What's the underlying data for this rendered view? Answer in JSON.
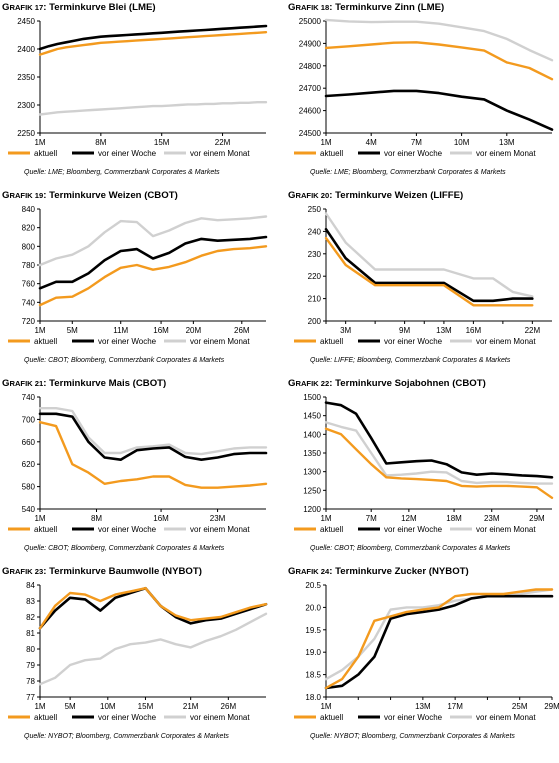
{
  "legend_labels": [
    "aktuell",
    "vor einer Woche",
    "vor einem Monat"
  ],
  "colors": {
    "aktuell": "#f39a1e",
    "woche": "#000000",
    "monat": "#d0d0d0"
  },
  "chart_data": [
    {
      "type": "line",
      "title_prefix": "Grafik 17:",
      "title": "Terminkurve Blei (LME)",
      "source": "Quelle: LME; Bloomberg, Commerzbank Corporates & Markets",
      "x": [
        1,
        2,
        3,
        4,
        5,
        6,
        7,
        8,
        9,
        10,
        11,
        12,
        13,
        14,
        15,
        16,
        17,
        18,
        19,
        20,
        21,
        22,
        23,
        24,
        25,
        26,
        27
      ],
      "x_ticks": [
        1,
        8,
        15,
        22
      ],
      "x_tick_labels": [
        "1M",
        "8M",
        "15M",
        "22M"
      ],
      "xlim": [
        1,
        27
      ],
      "ylim": [
        2250,
        2450
      ],
      "y_ticks": [
        2250,
        2300,
        2350,
        2400,
        2450
      ],
      "series": [
        {
          "name": "aktuell",
          "values": [
            2390,
            2395,
            2400,
            2403,
            2405,
            2407,
            2409,
            2411,
            2412,
            2413,
            2414,
            2415,
            2416,
            2417,
            2418,
            2419,
            2420,
            2421,
            2422,
            2423,
            2424,
            2425,
            2426,
            2427,
            2428,
            2429,
            2430
          ]
        },
        {
          "name": "vor einer Woche",
          "values": [
            2400,
            2405,
            2409,
            2412,
            2415,
            2418,
            2420,
            2422,
            2423,
            2424,
            2425,
            2426,
            2427,
            2428,
            2429,
            2430,
            2431,
            2432,
            2433,
            2434,
            2435,
            2436,
            2437,
            2438,
            2439,
            2440,
            2441
          ]
        },
        {
          "name": "vor einem Monat",
          "values": [
            2283,
            2285,
            2287,
            2288,
            2289,
            2290,
            2291,
            2292,
            2293,
            2294,
            2295,
            2296,
            2297,
            2298,
            2298,
            2299,
            2300,
            2301,
            2301,
            2302,
            2302,
            2303,
            2303,
            2304,
            2304,
            2305,
            2305
          ]
        }
      ]
    },
    {
      "type": "line",
      "title_prefix": "Grafik 18:",
      "title": "Terminkurve Zinn (LME)",
      "source": "Quelle: LME; Bloomberg, Commerzbank Corporates & Markets",
      "x": [
        1,
        2.5,
        4,
        5.5,
        7,
        8.5,
        10,
        11.5,
        13,
        14.5,
        16
      ],
      "x_ticks": [
        1,
        4,
        7,
        10,
        13
      ],
      "x_tick_labels": [
        "1M",
        "4M",
        "7M",
        "10M",
        "13M"
      ],
      "xlim": [
        1,
        16
      ],
      "ylim": [
        24500,
        25000
      ],
      "y_ticks": [
        24500,
        24600,
        24700,
        24800,
        24900,
        25000
      ],
      "series": [
        {
          "name": "aktuell",
          "values": [
            24880,
            24887,
            24895,
            24903,
            24905,
            24895,
            24882,
            24868,
            24815,
            24790,
            24740
          ]
        },
        {
          "name": "vor einer Woche",
          "values": [
            24665,
            24672,
            24680,
            24688,
            24688,
            24678,
            24662,
            24650,
            24600,
            24560,
            24515
          ]
        },
        {
          "name": "vor einem Monat",
          "values": [
            25005,
            24998,
            24995,
            24997,
            24997,
            24988,
            24972,
            24955,
            24920,
            24870,
            24825
          ]
        }
      ]
    },
    {
      "type": "line",
      "title_prefix": "Grafik 19:",
      "title": "Terminkurve Weizen (CBOT)",
      "source": "Quelle: CBOT; Bloomberg, Commerzbank Corporates & Markets",
      "x": [
        1,
        3,
        5,
        7,
        9,
        11,
        13,
        15,
        17,
        19,
        21,
        23,
        25,
        27,
        29
      ],
      "x_ticks": [
        1,
        5,
        11,
        16,
        20,
        26
      ],
      "x_tick_labels": [
        "1M",
        "5M",
        "11M",
        "16M",
        "20M",
        "26M"
      ],
      "xlim": [
        1,
        29
      ],
      "ylim": [
        720,
        840
      ],
      "y_ticks": [
        720,
        740,
        760,
        780,
        800,
        820,
        840
      ],
      "series": [
        {
          "name": "aktuell",
          "values": [
            737,
            745,
            746,
            755,
            767,
            777,
            780,
            775,
            778,
            783,
            790,
            795,
            797,
            798,
            800
          ]
        },
        {
          "name": "vor einer Woche",
          "values": [
            755,
            762,
            762,
            771,
            785,
            795,
            797,
            787,
            793,
            803,
            808,
            806,
            807,
            808,
            810
          ]
        },
        {
          "name": "vor einem Monat",
          "values": [
            780,
            787,
            791,
            800,
            815,
            827,
            826,
            811,
            817,
            825,
            830,
            828,
            829,
            830,
            832
          ]
        }
      ]
    },
    {
      "type": "line",
      "title_prefix": "Grafik 20:",
      "title": "Terminkurve Weizen (LIFFE)",
      "source": "Quelle: LIFFE; Bloomberg, Commerzbank Corporates & Markets",
      "x": [
        1,
        3,
        6,
        9,
        11,
        13,
        16,
        18,
        20,
        22
      ],
      "x_ticks": [
        1,
        3,
        6,
        9,
        11,
        13,
        16,
        19,
        22
      ],
      "x_tick_labels": [
        "",
        "3M",
        "",
        "9M",
        "",
        "13M",
        "16M",
        "",
        "22M"
      ],
      "xlim": [
        1,
        24
      ],
      "ylim": [
        200,
        250
      ],
      "y_ticks": [
        200,
        210,
        220,
        230,
        240,
        250
      ],
      "series": [
        {
          "name": "aktuell",
          "values": [
            237,
            225,
            216,
            216,
            216,
            216,
            207,
            207,
            207,
            207
          ]
        },
        {
          "name": "vor einer Woche",
          "values": [
            241,
            228,
            217,
            217,
            217,
            217,
            209,
            209,
            210,
            210
          ]
        },
        {
          "name": "vor einem Monat",
          "values": [
            248,
            235,
            223,
            223,
            223,
            223,
            219,
            219,
            213,
            211
          ]
        }
      ]
    },
    {
      "type": "line",
      "title_prefix": "Grafik 21:",
      "title": "Terminkurve Mais (CBOT)",
      "source": "Quelle: CBOT; Bloomberg, Commerzbank Corporates & Markets",
      "x": [
        1,
        3,
        5,
        7,
        9,
        11,
        13,
        15,
        17,
        19,
        21,
        23,
        25,
        27,
        29
      ],
      "x_ticks": [
        1,
        8,
        16,
        23
      ],
      "x_tick_labels": [
        "1M",
        "8M",
        "16M",
        "23M"
      ],
      "xlim": [
        1,
        29
      ],
      "ylim": [
        540,
        740
      ],
      "y_ticks": [
        540,
        580,
        620,
        660,
        700,
        740
      ],
      "series": [
        {
          "name": "aktuell",
          "values": [
            695,
            688,
            620,
            605,
            585,
            590,
            593,
            598,
            598,
            583,
            578,
            578,
            580,
            582,
            585
          ]
        },
        {
          "name": "vor einer Woche",
          "values": [
            710,
            710,
            705,
            660,
            632,
            628,
            645,
            648,
            650,
            633,
            628,
            632,
            638,
            640,
            640
          ]
        },
        {
          "name": "vor einem Monat",
          "values": [
            720,
            720,
            715,
            668,
            640,
            640,
            650,
            652,
            655,
            640,
            638,
            643,
            648,
            650,
            650
          ]
        }
      ]
    },
    {
      "type": "line",
      "title_prefix": "Grafik 22:",
      "title": "Terminkurve Sojabohnen (CBOT)",
      "source": "Quelle: CBOT; Bloomberg, Commerzbank Corporates & Markets",
      "x": [
        1,
        3,
        5,
        7,
        9,
        11,
        13,
        15,
        17,
        19,
        21,
        23,
        25,
        27,
        29,
        31
      ],
      "x_ticks": [
        1,
        7,
        12,
        18,
        23,
        29
      ],
      "x_tick_labels": [
        "1M",
        "7M",
        "12M",
        "18M",
        "23M",
        "29M"
      ],
      "xlim": [
        1,
        31
      ],
      "ylim": [
        1200,
        1500
      ],
      "y_ticks": [
        1200,
        1250,
        1300,
        1350,
        1400,
        1450,
        1500
      ],
      "series": [
        {
          "name": "aktuell",
          "values": [
            1415,
            1400,
            1360,
            1320,
            1285,
            1282,
            1280,
            1278,
            1275,
            1262,
            1260,
            1262,
            1262,
            1260,
            1258,
            1230
          ]
        },
        {
          "name": "vor einer Woche",
          "values": [
            1485,
            1478,
            1455,
            1390,
            1322,
            1325,
            1328,
            1330,
            1320,
            1298,
            1292,
            1295,
            1293,
            1290,
            1288,
            1285
          ]
        },
        {
          "name": "vor einem Monat",
          "values": [
            1432,
            1420,
            1410,
            1350,
            1290,
            1292,
            1295,
            1300,
            1298,
            1275,
            1270,
            1272,
            1272,
            1270,
            1268,
            1268
          ]
        }
      ]
    },
    {
      "type": "line",
      "title_prefix": "Grafik 23:",
      "title": "Terminkurve Baumwolle (NYBOT)",
      "source": "Quelle: NYBOT; Bloomberg, Commerzbank Corporates & Markets",
      "x": [
        1,
        3,
        5,
        7,
        9,
        11,
        13,
        15,
        17,
        19,
        21,
        23,
        25,
        27,
        29,
        31
      ],
      "x_ticks": [
        1,
        5,
        10,
        15,
        21,
        26
      ],
      "x_tick_labels": [
        "1M",
        "5M",
        "10M",
        "15M",
        "21M",
        "26M"
      ],
      "xlim": [
        1,
        31
      ],
      "ylim": [
        77,
        84
      ],
      "y_ticks": [
        77,
        78,
        79,
        80,
        81,
        82,
        83,
        84
      ],
      "series": [
        {
          "name": "aktuell",
          "values": [
            81.3,
            82.7,
            83.5,
            83.4,
            83.0,
            83.4,
            83.6,
            83.8,
            82.7,
            82.1,
            81.8,
            81.9,
            82.0,
            82.3,
            82.6,
            82.8
          ]
        },
        {
          "name": "vor einer Woche",
          "values": [
            81.3,
            82.4,
            83.2,
            83.1,
            82.4,
            83.2,
            83.5,
            83.8,
            82.7,
            82.0,
            81.6,
            81.8,
            81.9,
            82.2,
            82.5,
            82.8
          ]
        },
        {
          "name": "vor einem Monat",
          "values": [
            77.8,
            78.2,
            79.0,
            79.3,
            79.4,
            80.0,
            80.3,
            80.4,
            80.6,
            80.3,
            80.1,
            80.5,
            80.8,
            81.2,
            81.7,
            82.2
          ]
        }
      ]
    },
    {
      "type": "line",
      "title_prefix": "Grafik 24:",
      "title": "Terminkurve Zucker (NYBOT)",
      "source": "Quelle: NYBOT; Bloomberg, Commerzbank Corporates & Markets",
      "x": [
        1,
        3,
        5,
        7,
        9,
        11,
        13,
        15,
        17,
        19,
        21,
        23,
        25,
        27,
        29
      ],
      "x_ticks": [
        1,
        5,
        9,
        13,
        17,
        21,
        25,
        29
      ],
      "x_tick_labels": [
        "1M",
        "",
        "",
        "13M",
        "17M",
        "",
        "25M",
        "29M"
      ],
      "xlim": [
        1,
        29
      ],
      "ylim": [
        18.0,
        20.5
      ],
      "y_ticks": [
        18.0,
        18.5,
        19.0,
        19.5,
        20.0,
        20.5
      ],
      "series": [
        {
          "name": "aktuell",
          "values": [
            18.2,
            18.4,
            18.9,
            19.7,
            19.8,
            19.9,
            19.95,
            20.0,
            20.25,
            20.3,
            20.3,
            20.3,
            20.35,
            20.4,
            20.4
          ]
        },
        {
          "name": "vor einer Woche",
          "values": [
            18.2,
            18.25,
            18.5,
            18.9,
            19.75,
            19.85,
            19.9,
            19.95,
            20.05,
            20.2,
            20.25,
            20.25,
            20.25,
            20.25,
            20.25
          ]
        },
        {
          "name": "vor einem Monat",
          "values": [
            18.4,
            18.6,
            18.9,
            19.3,
            19.95,
            20.0,
            20.0,
            20.05,
            20.15,
            20.2,
            20.25,
            20.25,
            20.3,
            20.35,
            20.4
          ]
        }
      ]
    }
  ]
}
